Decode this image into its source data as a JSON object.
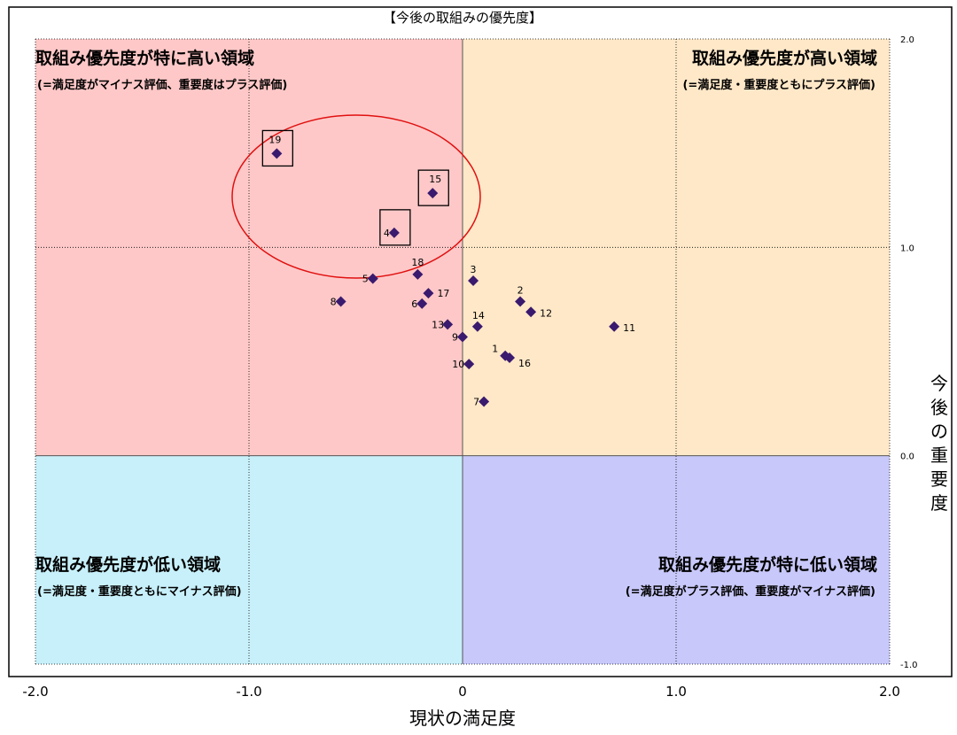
{
  "chart_data": {
    "type": "scatter",
    "title": "【今後の取組みの優先度】",
    "xlabel": "現状の満足度",
    "ylabel": "今後の重要度",
    "xlim": [
      -2.0,
      2.0
    ],
    "ylim": [
      -1.0,
      2.0
    ],
    "x_ticks": [
      "-2.0",
      "-1.0",
      "0",
      "1.0",
      "2.0"
    ],
    "y_ticks": [
      "2.0",
      "1.0",
      "0.0",
      "-1.0"
    ],
    "grid": true,
    "quadrants": [
      {
        "id": "top-left",
        "title": "取組み優先度が特に高い領域",
        "subtitle": "(=満足度がマイナス評価、重要度はプラス評価)",
        "color": "#ffc8c8"
      },
      {
        "id": "top-right",
        "title": "取組み優先度が高い領域",
        "subtitle": "(=満足度・重要度ともにプラス評価)",
        "color": "#ffe8c8"
      },
      {
        "id": "bottom-left",
        "title": "取組み優先度が低い領域",
        "subtitle": "(=満足度・重要度ともにマイナス評価)",
        "color": "#c8f0fa"
      },
      {
        "id": "bottom-right",
        "title": "取組み優先度が特に低い領域",
        "subtitle": "(=満足度がプラス評価、重要度がマイナス評価)",
        "color": "#c8c8fa"
      }
    ],
    "marker_color": "#3a1a6e",
    "highlight_color": "#e01010",
    "highlighted_points": [
      "19",
      "15",
      "4"
    ],
    "points": [
      {
        "label": "1",
        "x": 0.2,
        "y": 0.48
      },
      {
        "label": "2",
        "x": 0.27,
        "y": 0.74
      },
      {
        "label": "3",
        "x": 0.05,
        "y": 0.84
      },
      {
        "label": "4",
        "x": -0.32,
        "y": 1.07
      },
      {
        "label": "5",
        "x": -0.42,
        "y": 0.85
      },
      {
        "label": "6",
        "x": -0.19,
        "y": 0.73
      },
      {
        "label": "7",
        "x": 0.1,
        "y": 0.26
      },
      {
        "label": "8",
        "x": -0.57,
        "y": 0.74
      },
      {
        "label": "9",
        "x": 0.0,
        "y": 0.57
      },
      {
        "label": "10",
        "x": 0.03,
        "y": 0.44
      },
      {
        "label": "11",
        "x": 0.71,
        "y": 0.62
      },
      {
        "label": "12",
        "x": 0.32,
        "y": 0.69
      },
      {
        "label": "13",
        "x": -0.07,
        "y": 0.63
      },
      {
        "label": "14",
        "x": 0.07,
        "y": 0.62
      },
      {
        "label": "15",
        "x": -0.14,
        "y": 1.26
      },
      {
        "label": "16",
        "x": 0.22,
        "y": 0.47
      },
      {
        "label": "17",
        "x": -0.16,
        "y": 0.78
      },
      {
        "label": "18",
        "x": -0.21,
        "y": 0.87
      },
      {
        "label": "19",
        "x": -0.87,
        "y": 1.45
      }
    ]
  }
}
